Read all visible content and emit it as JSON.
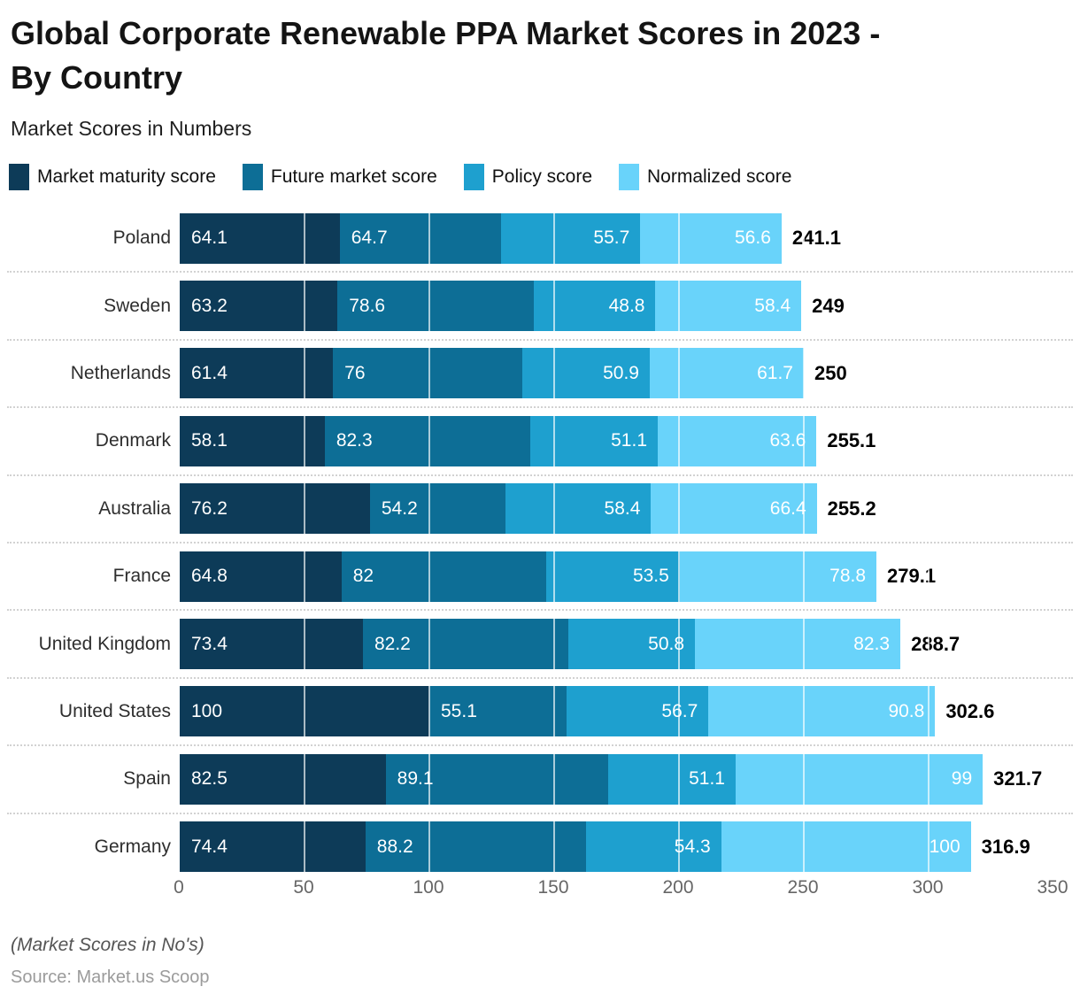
{
  "header": {
    "title_lines": [
      "Global Corporate Renewable PPA Market Scores in 2023 -",
      "By Country"
    ],
    "subtitle": "Market Scores in Numbers"
  },
  "chart_data": {
    "type": "bar",
    "orientation": "horizontal",
    "stacked": true,
    "legend_position": "top",
    "grid": "white vertical tick lines over bars, dotted gray row separators",
    "categories": [
      "Poland",
      "Sweden",
      "Netherlands",
      "Denmark",
      "Australia",
      "France",
      "United Kingdom",
      "United States",
      "Spain",
      "Germany"
    ],
    "series": [
      {
        "name": "Market maturity score",
        "color": "#0d3b58",
        "values": [
          64.1,
          63.2,
          61.4,
          58.1,
          76.2,
          64.8,
          73.4,
          100,
          82.5,
          74.4
        ]
      },
      {
        "name": "Future market score",
        "color": "#0d6e96",
        "values": [
          64.7,
          78.6,
          76,
          82.3,
          54.2,
          82,
          82.2,
          55.1,
          89.1,
          88.2
        ]
      },
      {
        "name": "Policy score",
        "color": "#1ea0cf",
        "values": [
          55.7,
          48.8,
          50.9,
          51.1,
          58.4,
          53.5,
          50.8,
          56.7,
          51.1,
          54.3
        ]
      },
      {
        "name": "Normalized score",
        "color": "#69d3fa",
        "values": [
          56.6,
          58.4,
          61.7,
          63.6,
          66.4,
          78.8,
          82.3,
          90.8,
          99,
          100
        ]
      }
    ],
    "totals": [
      241.1,
      249,
      250,
      255.1,
      255.2,
      279.1,
      288.7,
      302.6,
      321.7,
      316.9
    ],
    "x_ticks": [
      0,
      50,
      100,
      150,
      200,
      250,
      300,
      350
    ],
    "xlim": [
      0,
      350
    ],
    "value_label_color": "#ffffff",
    "total_label_color": "#000000"
  },
  "footer": {
    "note": "(Market Scores in No's)",
    "source": "Source: Market.us Scoop"
  }
}
